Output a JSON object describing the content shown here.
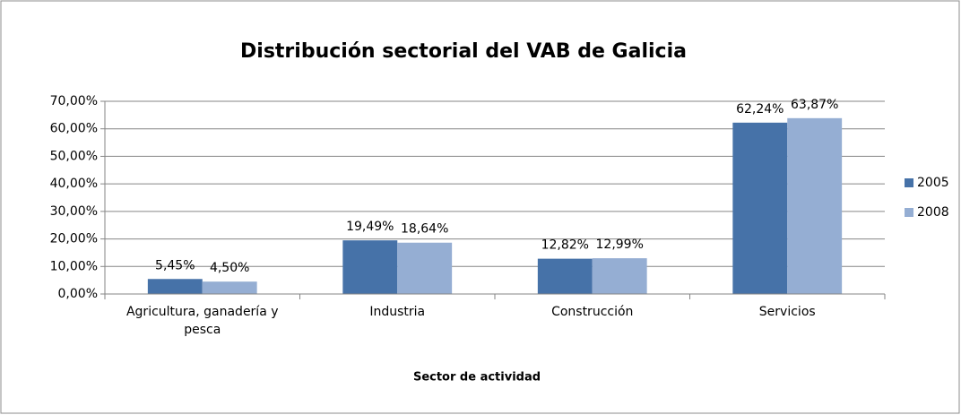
{
  "chart_data": {
    "type": "bar",
    "title": "Distribución sectorial del VAB de Galicia",
    "x_label": "Sector de actividad",
    "categories": [
      "Agricultura, ganadería y pesca",
      "Industria",
      "Construcción",
      "Servicios"
    ],
    "series": [
      {
        "name": "2005",
        "color": "#4672a8",
        "values": [
          5.45,
          19.49,
          12.82,
          62.24
        ],
        "value_labels": [
          "5,45%",
          "19,49%",
          "12,82%",
          "62,24%"
        ]
      },
      {
        "name": "2008",
        "color": "#95aed3",
        "values": [
          4.5,
          18.64,
          12.99,
          63.87
        ],
        "value_labels": [
          "4,50%",
          "18,64%",
          "12,99%",
          "63,87%"
        ]
      }
    ],
    "ylim": [
      0,
      70
    ],
    "yticks": [
      {
        "value": 0,
        "label": "0,00%"
      },
      {
        "value": 10,
        "label": "10,00%"
      },
      {
        "value": 20,
        "label": "20,00%"
      },
      {
        "value": 30,
        "label": "30,00%"
      },
      {
        "value": 40,
        "label": "40,00%"
      },
      {
        "value": 50,
        "label": "50,00%"
      },
      {
        "value": 60,
        "label": "60,00%"
      },
      {
        "value": 70,
        "label": "70,00%"
      }
    ],
    "grid": true,
    "legend": "right"
  }
}
